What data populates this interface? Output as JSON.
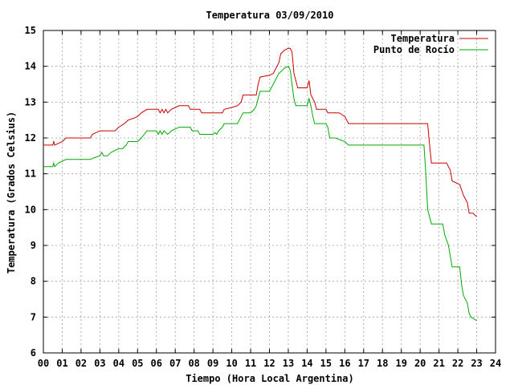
{
  "chart_data": {
    "type": "line",
    "title": "Temperatura 03/09/2010",
    "xlabel": "Tiempo (Hora Local Argentina)",
    "ylabel": "Temperatura (Grados Celsius)",
    "xlim": [
      0,
      24
    ],
    "ylim": [
      6,
      15
    ],
    "xticks": [
      "00",
      "01",
      "02",
      "03",
      "04",
      "05",
      "06",
      "07",
      "08",
      "09",
      "10",
      "11",
      "12",
      "13",
      "14",
      "15",
      "16",
      "17",
      "18",
      "19",
      "20",
      "21",
      "22",
      "23",
      "24"
    ],
    "yticks": [
      "6",
      "7",
      "8",
      "9",
      "10",
      "11",
      "12",
      "13",
      "14",
      "15"
    ],
    "grid": true,
    "legend_position": "top-right",
    "series": [
      {
        "name": "Temperatura",
        "color": "#cc0000",
        "points": [
          [
            0.0,
            11.8
          ],
          [
            0.5,
            11.8
          ],
          [
            0.55,
            11.9
          ],
          [
            0.6,
            11.8
          ],
          [
            0.8,
            11.85
          ],
          [
            1.0,
            11.9
          ],
          [
            1.2,
            12.0
          ],
          [
            2.5,
            12.0
          ],
          [
            2.6,
            12.1
          ],
          [
            3.0,
            12.2
          ],
          [
            3.8,
            12.2
          ],
          [
            4.0,
            12.3
          ],
          [
            4.3,
            12.4
          ],
          [
            4.5,
            12.5
          ],
          [
            4.8,
            12.55
          ],
          [
            5.0,
            12.6
          ],
          [
            5.2,
            12.7
          ],
          [
            5.5,
            12.8
          ],
          [
            6.1,
            12.8
          ],
          [
            6.2,
            12.7
          ],
          [
            6.3,
            12.8
          ],
          [
            6.4,
            12.7
          ],
          [
            6.5,
            12.8
          ],
          [
            6.6,
            12.7
          ],
          [
            6.8,
            12.8
          ],
          [
            7.0,
            12.85
          ],
          [
            7.2,
            12.9
          ],
          [
            7.7,
            12.9
          ],
          [
            7.8,
            12.8
          ],
          [
            8.3,
            12.8
          ],
          [
            8.4,
            12.7
          ],
          [
            9.0,
            12.7
          ],
          [
            9.5,
            12.7
          ],
          [
            9.6,
            12.8
          ],
          [
            10.0,
            12.85
          ],
          [
            10.3,
            12.9
          ],
          [
            10.5,
            13.0
          ],
          [
            10.6,
            13.2
          ],
          [
            11.0,
            13.2
          ],
          [
            11.3,
            13.2
          ],
          [
            11.4,
            13.5
          ],
          [
            11.5,
            13.7
          ],
          [
            12.0,
            13.75
          ],
          [
            12.2,
            13.8
          ],
          [
            12.5,
            14.1
          ],
          [
            12.6,
            14.35
          ],
          [
            12.8,
            14.45
          ],
          [
            13.0,
            14.5
          ],
          [
            13.1,
            14.5
          ],
          [
            13.2,
            14.4
          ],
          [
            13.3,
            13.8
          ],
          [
            13.5,
            13.4
          ],
          [
            14.0,
            13.4
          ],
          [
            14.1,
            13.6
          ],
          [
            14.2,
            13.2
          ],
          [
            14.4,
            13.0
          ],
          [
            14.5,
            12.8
          ],
          [
            15.0,
            12.8
          ],
          [
            15.1,
            12.7
          ],
          [
            15.7,
            12.7
          ],
          [
            16.0,
            12.6
          ],
          [
            16.2,
            12.4
          ],
          [
            20.0,
            12.4
          ],
          [
            20.4,
            12.4
          ],
          [
            20.5,
            11.8
          ],
          [
            20.6,
            11.3
          ],
          [
            21.4,
            11.3
          ],
          [
            21.6,
            11.1
          ],
          [
            21.7,
            10.8
          ],
          [
            22.1,
            10.7
          ],
          [
            22.3,
            10.4
          ],
          [
            22.5,
            10.2
          ],
          [
            22.6,
            9.9
          ],
          [
            22.8,
            9.9
          ],
          [
            23.0,
            9.8
          ]
        ]
      },
      {
        "name": "Punto de Rocío",
        "color": "#00aa00",
        "points": [
          [
            0.0,
            11.2
          ],
          [
            0.5,
            11.2
          ],
          [
            0.55,
            11.3
          ],
          [
            0.6,
            11.2
          ],
          [
            0.8,
            11.3
          ],
          [
            1.0,
            11.35
          ],
          [
            1.2,
            11.4
          ],
          [
            2.5,
            11.4
          ],
          [
            2.7,
            11.45
          ],
          [
            3.0,
            11.5
          ],
          [
            3.1,
            11.6
          ],
          [
            3.2,
            11.5
          ],
          [
            3.4,
            11.5
          ],
          [
            3.6,
            11.6
          ],
          [
            3.8,
            11.65
          ],
          [
            4.0,
            11.7
          ],
          [
            4.2,
            11.7
          ],
          [
            4.4,
            11.8
          ],
          [
            4.5,
            11.9
          ],
          [
            4.8,
            11.9
          ],
          [
            5.0,
            11.9
          ],
          [
            5.2,
            12.0
          ],
          [
            5.5,
            12.2
          ],
          [
            6.0,
            12.2
          ],
          [
            6.1,
            12.1
          ],
          [
            6.2,
            12.2
          ],
          [
            6.3,
            12.1
          ],
          [
            6.4,
            12.2
          ],
          [
            6.6,
            12.1
          ],
          [
            6.8,
            12.2
          ],
          [
            7.0,
            12.25
          ],
          [
            7.2,
            12.3
          ],
          [
            7.8,
            12.3
          ],
          [
            7.9,
            12.2
          ],
          [
            8.2,
            12.2
          ],
          [
            8.3,
            12.1
          ],
          [
            9.0,
            12.1
          ],
          [
            9.1,
            12.15
          ],
          [
            9.2,
            12.1
          ],
          [
            9.3,
            12.2
          ],
          [
            9.5,
            12.3
          ],
          [
            9.6,
            12.4
          ],
          [
            10.0,
            12.4
          ],
          [
            10.3,
            12.4
          ],
          [
            10.4,
            12.5
          ],
          [
            10.5,
            12.6
          ],
          [
            10.6,
            12.7
          ],
          [
            11.0,
            12.7
          ],
          [
            11.2,
            12.8
          ],
          [
            11.3,
            12.9
          ],
          [
            11.4,
            13.1
          ],
          [
            11.5,
            13.3
          ],
          [
            12.0,
            13.3
          ],
          [
            12.2,
            13.5
          ],
          [
            12.5,
            13.8
          ],
          [
            12.8,
            13.95
          ],
          [
            13.0,
            14.0
          ],
          [
            13.1,
            13.9
          ],
          [
            13.2,
            13.5
          ],
          [
            13.3,
            13.1
          ],
          [
            13.4,
            12.9
          ],
          [
            14.0,
            12.9
          ],
          [
            14.1,
            13.1
          ],
          [
            14.2,
            12.9
          ],
          [
            14.3,
            12.6
          ],
          [
            14.4,
            12.4
          ],
          [
            15.0,
            12.4
          ],
          [
            15.1,
            12.3
          ],
          [
            15.2,
            12.0
          ],
          [
            15.5,
            12.0
          ],
          [
            16.0,
            11.9
          ],
          [
            16.2,
            11.8
          ],
          [
            20.0,
            11.8
          ],
          [
            20.2,
            11.8
          ],
          [
            20.3,
            11.0
          ],
          [
            20.4,
            10.0
          ],
          [
            20.6,
            9.6
          ],
          [
            21.2,
            9.6
          ],
          [
            21.3,
            9.3
          ],
          [
            21.5,
            9.0
          ],
          [
            21.6,
            8.7
          ],
          [
            21.7,
            8.4
          ],
          [
            22.1,
            8.4
          ],
          [
            22.2,
            7.9
          ],
          [
            22.3,
            7.6
          ],
          [
            22.5,
            7.4
          ],
          [
            22.6,
            7.1
          ],
          [
            22.7,
            7.0
          ],
          [
            23.0,
            6.9
          ]
        ]
      }
    ]
  }
}
